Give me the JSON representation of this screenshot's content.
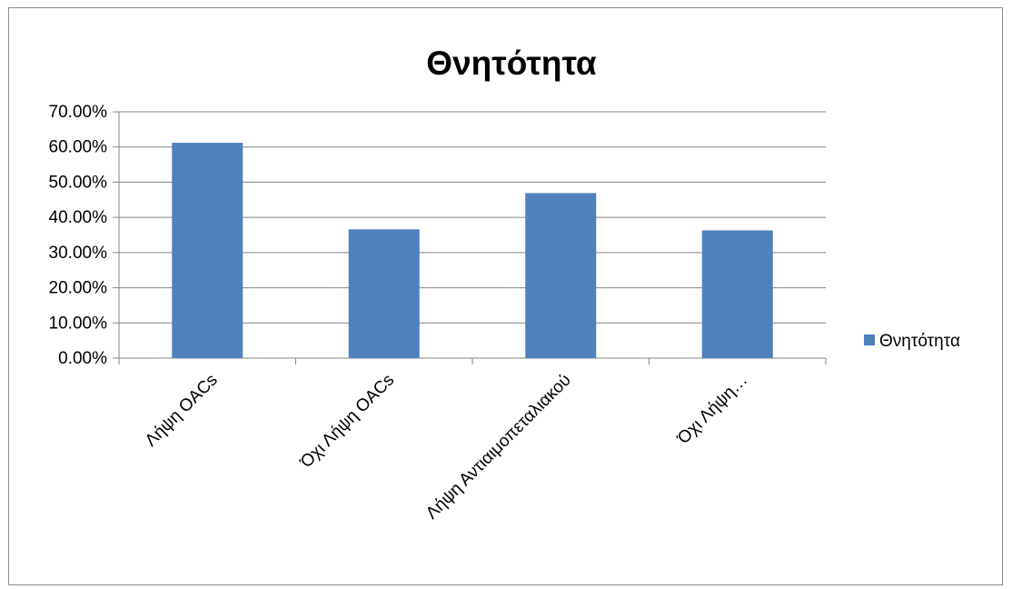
{
  "chart_data": {
    "type": "bar",
    "title": "Θνητότητα",
    "categories": [
      "Λήψη OACs",
      "Όχι Λήψη OACs",
      "Λήψη Αντιαιμοπεταλιακού",
      "Όχι Λήψη…"
    ],
    "series": [
      {
        "name": "Θνητότητα",
        "values": [
          0.612,
          0.366,
          0.469,
          0.363
        ],
        "color": "#4f81bd"
      }
    ],
    "ylim": [
      0,
      0.7
    ],
    "yticks": [
      0,
      0.1,
      0.2,
      0.3,
      0.4,
      0.5,
      0.6,
      0.7
    ],
    "ytick_labels": [
      "0.00%",
      "10.00%",
      "20.00%",
      "30.00%",
      "40.00%",
      "50.00%",
      "60.00%",
      "70.00%"
    ],
    "grid": true,
    "legend": "right",
    "xlabel": "",
    "ylabel": ""
  }
}
